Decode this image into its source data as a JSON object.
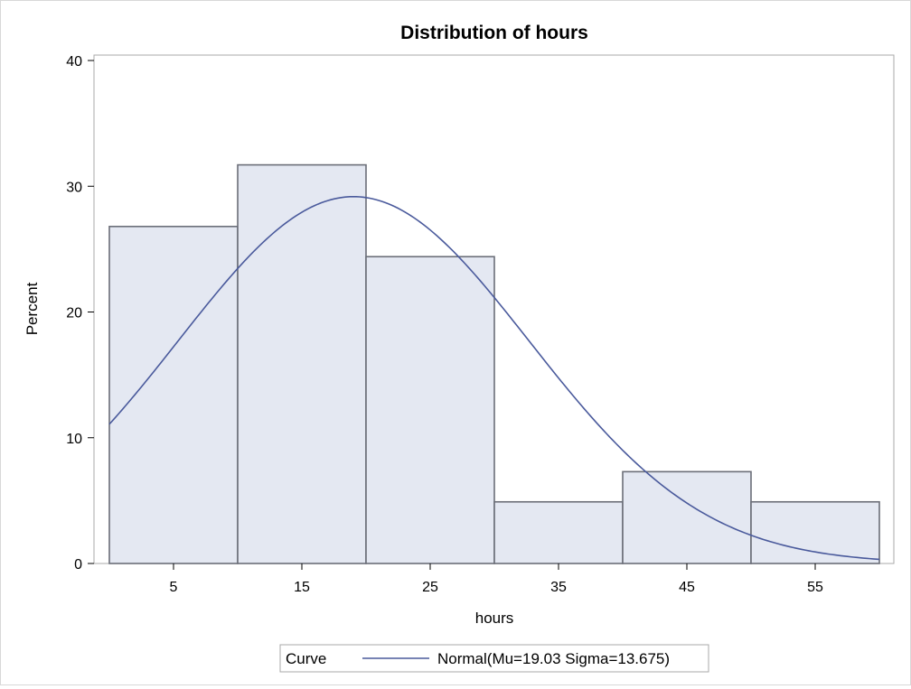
{
  "chart_data": {
    "type": "bar",
    "title": "Distribution of hours",
    "xlabel": "hours",
    "ylabel": "Percent",
    "xlim": [
      0,
      60
    ],
    "ylim": [
      0,
      40
    ],
    "bin_width": 10,
    "bin_midpoints": [
      5,
      15,
      25,
      35,
      45,
      55
    ],
    "x_tick_labels": [
      "5",
      "15",
      "25",
      "35",
      "45",
      "55"
    ],
    "y_ticks": [
      0,
      10,
      20,
      30,
      40
    ],
    "y_tick_labels": [
      "0",
      "10",
      "20",
      "30",
      "40"
    ],
    "values": [
      26.8,
      31.7,
      24.4,
      4.9,
      7.3,
      4.9
    ],
    "grid": false,
    "colors": {
      "bar_fill": "#e4e8f2",
      "bar_edge": "#6b6e78",
      "curve": "#4a5a9c"
    },
    "curve": {
      "type": "normal",
      "mu": 19.03,
      "sigma": 13.675
    },
    "legend": {
      "position": "bottom-center",
      "title": "Curve",
      "entry": "Normal(Mu=19.03 Sigma=13.675)"
    }
  }
}
